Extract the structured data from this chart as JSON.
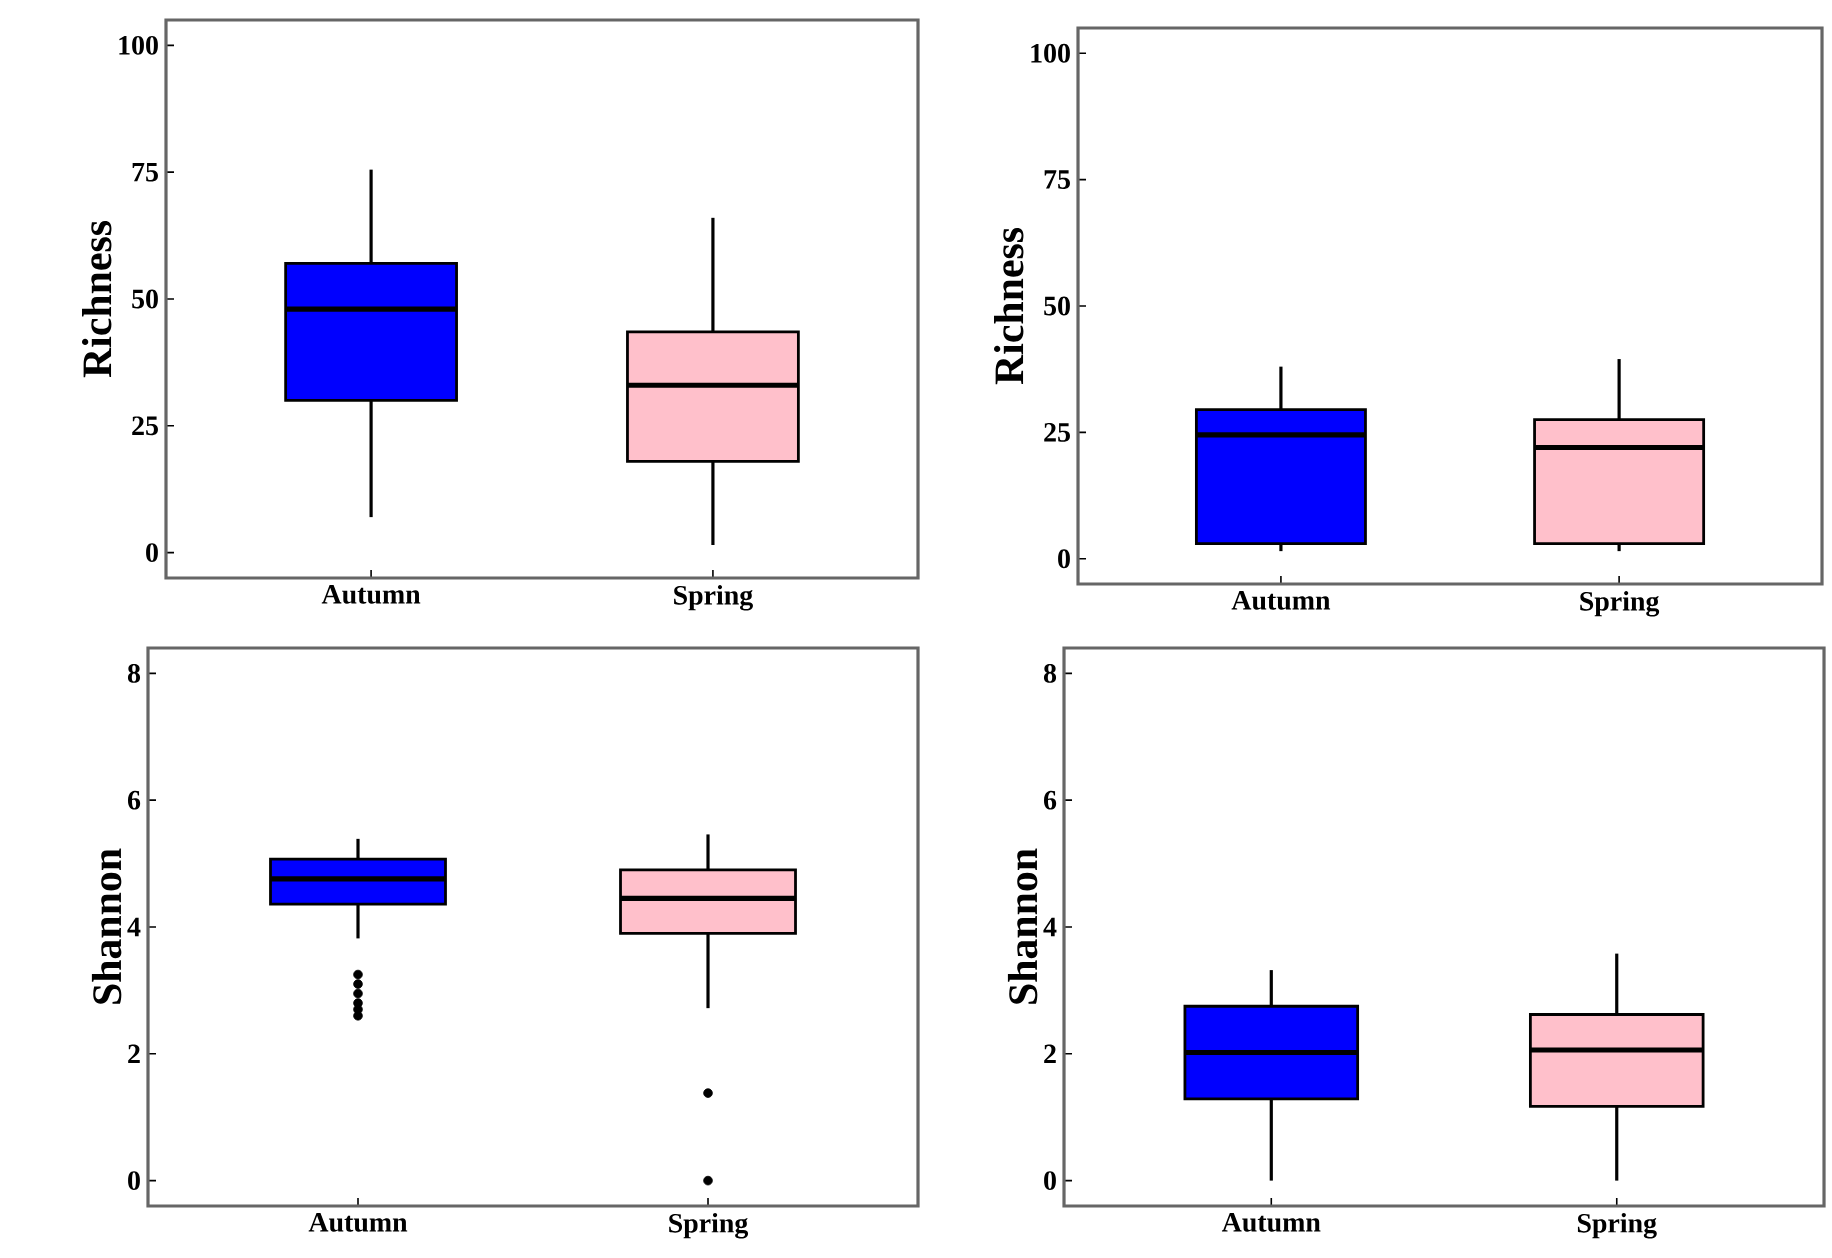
{
  "chart_data": [
    {
      "type": "box",
      "categories": [
        "Autumn",
        "Spring"
      ],
      "ylabel": "Richness",
      "ylim": [
        -5,
        105
      ],
      "yticks": [
        0,
        25,
        50,
        75,
        100
      ],
      "colors": [
        "#0000ff",
        "#ffc0cb"
      ],
      "boxes": [
        {
          "low": 7,
          "q1": 30,
          "median": 48,
          "q3": 57,
          "high": 75.5
        },
        {
          "low": 1.5,
          "q1": 18,
          "median": 33,
          "q3": 43.5,
          "high": 66
        }
      ]
    },
    {
      "type": "box",
      "categories": [
        "Autumn",
        "Spring"
      ],
      "ylabel": "Richness",
      "ylim": [
        -5,
        105
      ],
      "yticks": [
        0,
        25,
        50,
        75,
        100
      ],
      "colors": [
        "#0000ff",
        "#ffc0cb"
      ],
      "boxes": [
        {
          "low": 1.5,
          "q1": 3,
          "median": 24.5,
          "q3": 29.5,
          "high": 38
        },
        {
          "low": 1.5,
          "q1": 3,
          "median": 22,
          "q3": 27.5,
          "high": 39.5
        }
      ]
    },
    {
      "type": "box",
      "categories": [
        "Autumn",
        "Spring"
      ],
      "ylabel": "Shannon",
      "ylim": [
        -0.4,
        8.4
      ],
      "yticks": [
        0,
        2,
        4,
        6,
        8
      ],
      "colors": [
        "#0000ff",
        "#ffc0cb"
      ],
      "boxes": [
        {
          "low": 3.82,
          "q1": 4.36,
          "median": 4.76,
          "q3": 5.07,
          "high": 5.39,
          "outliers": [
            3.25,
            3.1,
            2.95,
            2.8,
            2.7,
            2.6
          ]
        },
        {
          "low": 2.72,
          "q1": 3.9,
          "median": 4.45,
          "q3": 4.9,
          "high": 5.46,
          "outliers": [
            1.38,
            0
          ]
        }
      ]
    },
    {
      "type": "box",
      "categories": [
        "Autumn",
        "Spring"
      ],
      "ylabel": "Shannon",
      "ylim": [
        -0.4,
        8.4
      ],
      "yticks": [
        0,
        2,
        4,
        6,
        8
      ],
      "colors": [
        "#0000ff",
        "#ffc0cb"
      ],
      "boxes": [
        {
          "low": 0,
          "q1": 1.29,
          "median": 2.02,
          "q3": 2.75,
          "high": 3.32
        },
        {
          "low": 0,
          "q1": 1.17,
          "median": 2.06,
          "q3": 2.62,
          "high": 3.58
        }
      ]
    }
  ]
}
